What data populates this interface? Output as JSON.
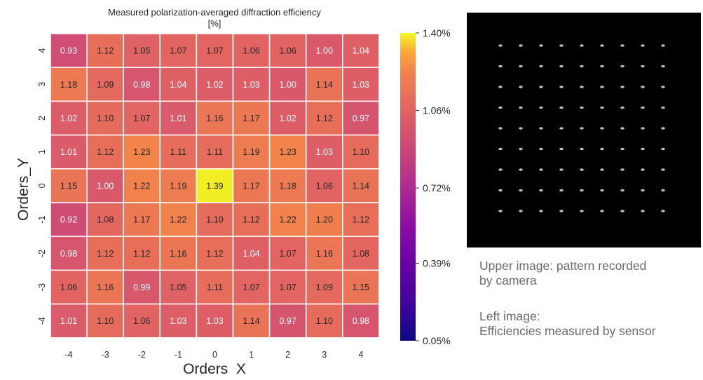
{
  "chart_data": {
    "type": "heatmap",
    "title": [
      "Measured polarization-averaged diffraction efficiency",
      "[%]"
    ],
    "xlabel": "Orders  X",
    "ylabel": "Orders_Y",
    "x_categories": [
      "-4",
      "-3",
      "-2",
      "-1",
      "0",
      "1",
      "2",
      "3",
      "4"
    ],
    "y_categories": [
      "4",
      "3",
      "2",
      "1",
      "0",
      "-1",
      "-2",
      "-3",
      "-4"
    ],
    "values": [
      [
        0.93,
        1.12,
        1.05,
        1.07,
        1.07,
        1.06,
        1.06,
        1.0,
        1.04
      ],
      [
        1.18,
        1.09,
        0.98,
        1.04,
        1.02,
        1.03,
        1.0,
        1.14,
        1.03
      ],
      [
        1.02,
        1.1,
        1.07,
        1.01,
        1.16,
        1.17,
        1.02,
        1.12,
        0.97
      ],
      [
        1.01,
        1.12,
        1.23,
        1.11,
        1.11,
        1.19,
        1.23,
        1.03,
        1.1
      ],
      [
        1.15,
        1.0,
        1.22,
        1.19,
        1.39,
        1.17,
        1.18,
        1.06,
        1.14
      ],
      [
        0.92,
        1.08,
        1.17,
        1.22,
        1.1,
        1.12,
        1.22,
        1.2,
        1.12
      ],
      [
        0.98,
        1.12,
        1.12,
        1.16,
        1.12,
        1.04,
        1.07,
        1.16,
        1.08
      ],
      [
        1.06,
        1.16,
        0.99,
        1.05,
        1.11,
        1.07,
        1.07,
        1.09,
        1.15
      ],
      [
        1.01,
        1.1,
        1.06,
        1.03,
        1.03,
        1.14,
        0.97,
        1.1,
        0.98
      ]
    ],
    "colormap": "plasma",
    "colorbar": {
      "min": 0.05,
      "max": 1.4,
      "ticks": [
        "1.40%",
        "1.06%",
        "0.72%",
        "0.39%",
        "0.05%"
      ],
      "tick_values": [
        1.4,
        1.06,
        0.72,
        0.39,
        0.05
      ]
    },
    "grid": true
  },
  "camera_image": {
    "rows": 9,
    "columns": 9,
    "background": "#000000"
  },
  "captions": {
    "upper_line1": "Upper image: pattern recorded",
    "upper_line2": "by camera",
    "left_line1": "Left image:",
    "left_line2": "Efficiencies measured by sensor"
  }
}
